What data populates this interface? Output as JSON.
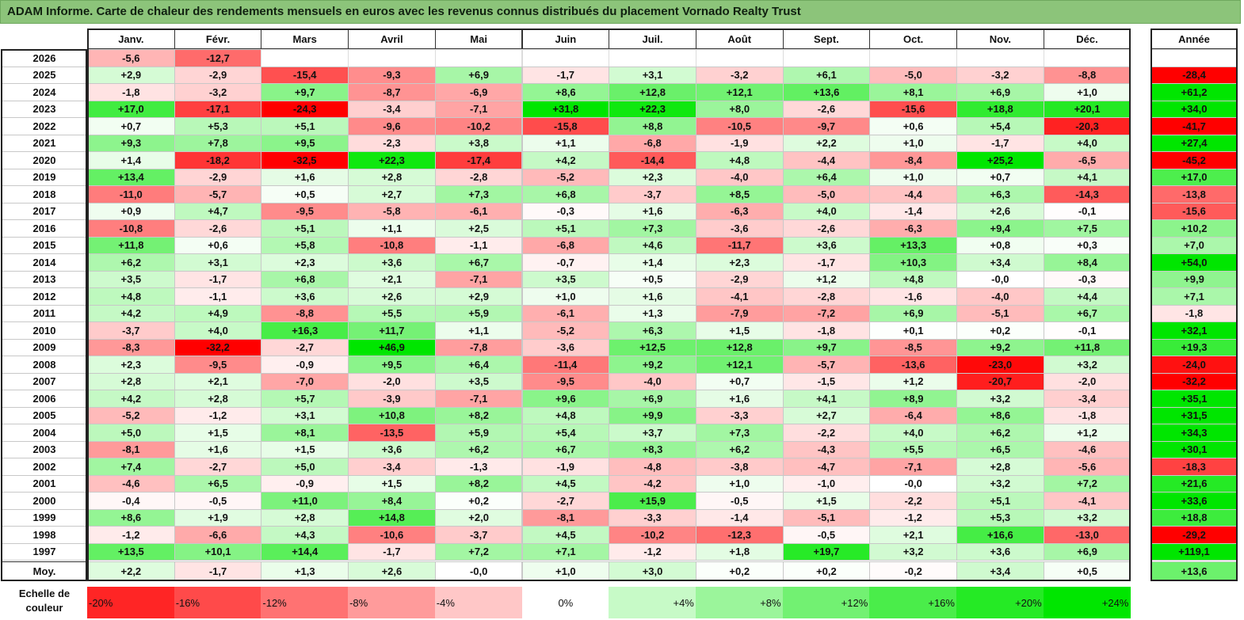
{
  "title": "ADAM Informe. Carte de chaleur des rendements mensuels en euros avec les revenus connus distribués du placement Vornado Realty Trust",
  "chart_data": {
    "type": "heatmap",
    "columns": [
      "Janv.",
      "Févr.",
      "Mars",
      "Avril",
      "Mai",
      "Juin",
      "Juil.",
      "Août",
      "Sept.",
      "Oct.",
      "Nov.",
      "Déc."
    ],
    "year_column": "Année",
    "rows": [
      {
        "label": "2026",
        "months": [
          "-5,6",
          "-12,7",
          "",
          "",
          "",
          "",
          "",
          "",
          "",
          "",
          "",
          ""
        ],
        "year": ""
      },
      {
        "label": "2025",
        "months": [
          "+2,9",
          "-2,9",
          "-15,4",
          "-9,3",
          "+6,9",
          "-1,7",
          "+3,1",
          "-3,2",
          "+6,1",
          "-5,0",
          "-3,2",
          "-8,8"
        ],
        "year": "-28,4"
      },
      {
        "label": "2024",
        "months": [
          "-1,8",
          "-3,2",
          "+9,7",
          "-8,7",
          "-6,9",
          "+8,6",
          "+12,8",
          "+12,1",
          "+13,6",
          "+8,1",
          "+6,9",
          "+1,0"
        ],
        "year": "+61,2"
      },
      {
        "label": "2023",
        "months": [
          "+17,0",
          "-17,1",
          "-24,3",
          "-3,4",
          "-7,1",
          "+31,8",
          "+22,3",
          "+8,0",
          "-2,6",
          "-15,6",
          "+18,8",
          "+20,1"
        ],
        "year": "+34,0"
      },
      {
        "label": "2022",
        "months": [
          "+0,7",
          "+5,3",
          "+5,1",
          "-9,6",
          "-10,2",
          "-15,8",
          "+8,8",
          "-10,5",
          "-9,7",
          "+0,6",
          "+5,4",
          "-20,3"
        ],
        "year": "-41,7"
      },
      {
        "label": "2021",
        "months": [
          "+9,3",
          "+7,8",
          "+9,5",
          "-2,3",
          "+3,8",
          "+1,1",
          "-6,8",
          "-1,9",
          "+2,2",
          "+1,0",
          "-1,7",
          "+4,0"
        ],
        "year": "+27,4"
      },
      {
        "label": "2020",
        "months": [
          "+1,4",
          "-18,2",
          "-32,5",
          "+22,3",
          "-17,4",
          "+4,2",
          "-14,4",
          "+4,8",
          "-4,4",
          "-8,4",
          "+25,2",
          "-6,5"
        ],
        "year": "-45,2"
      },
      {
        "label": "2019",
        "months": [
          "+13,4",
          "-2,9",
          "+1,6",
          "+2,8",
          "-2,8",
          "-5,2",
          "+2,3",
          "-4,0",
          "+6,4",
          "+1,0",
          "+0,7",
          "+4,1"
        ],
        "year": "+17,0"
      },
      {
        "label": "2018",
        "months": [
          "-11,0",
          "-5,7",
          "+0,5",
          "+2,7",
          "+7,3",
          "+6,8",
          "-3,7",
          "+8,5",
          "-5,0",
          "-4,4",
          "+6,3",
          "-14,3"
        ],
        "year": "-13,8"
      },
      {
        "label": "2017",
        "months": [
          "+0,9",
          "+4,7",
          "-9,5",
          "-5,8",
          "-6,1",
          "-0,3",
          "+1,6",
          "-6,3",
          "+4,0",
          "-1,4",
          "+2,6",
          "-0,1"
        ],
        "year": "-15,6"
      },
      {
        "label": "2016",
        "months": [
          "-10,8",
          "-2,6",
          "+5,1",
          "+1,1",
          "+2,5",
          "+5,1",
          "+7,3",
          "-3,6",
          "-2,6",
          "-6,3",
          "+9,4",
          "+7,5"
        ],
        "year": "+10,2"
      },
      {
        "label": "2015",
        "months": [
          "+11,8",
          "+0,6",
          "+5,8",
          "-10,8",
          "-1,1",
          "-6,8",
          "+4,6",
          "-11,7",
          "+3,6",
          "+13,3",
          "+0,8",
          "+0,3"
        ],
        "year": "+7,0"
      },
      {
        "label": "2014",
        "months": [
          "+6,2",
          "+3,1",
          "+2,3",
          "+3,6",
          "+6,7",
          "-0,7",
          "+1,4",
          "+2,3",
          "-1,7",
          "+10,3",
          "+3,4",
          "+8,4"
        ],
        "year": "+54,0"
      },
      {
        "label": "2013",
        "months": [
          "+3,5",
          "-1,7",
          "+6,8",
          "+2,1",
          "-7,1",
          "+3,5",
          "+0,5",
          "-2,9",
          "+1,2",
          "+4,8",
          "-0,0",
          "-0,3"
        ],
        "year": "+9,9"
      },
      {
        "label": "2012",
        "months": [
          "+4,8",
          "-1,1",
          "+3,6",
          "+2,6",
          "+2,9",
          "+1,0",
          "+1,6",
          "-4,1",
          "-2,8",
          "-1,6",
          "-4,0",
          "+4,4"
        ],
        "year": "+7,1"
      },
      {
        "label": "2011",
        "months": [
          "+4,2",
          "+4,9",
          "-8,8",
          "+5,5",
          "+5,9",
          "-6,1",
          "+1,3",
          "-7,9",
          "-7,2",
          "+6,9",
          "-5,1",
          "+6,7"
        ],
        "year": "-1,8"
      },
      {
        "label": "2010",
        "months": [
          "-3,7",
          "+4,0",
          "+16,3",
          "+11,7",
          "+1,1",
          "-5,2",
          "+6,3",
          "+1,5",
          "-1,8",
          "+0,1",
          "+0,2",
          "-0,1"
        ],
        "year": "+32,1"
      },
      {
        "label": "2009",
        "months": [
          "-8,3",
          "-32,2",
          "-2,7",
          "+46,9",
          "-7,8",
          "-3,6",
          "+12,5",
          "+12,8",
          "+9,7",
          "-8,5",
          "+9,2",
          "+11,8"
        ],
        "year": "+19,3"
      },
      {
        "label": "2008",
        "months": [
          "+2,3",
          "-9,5",
          "-0,9",
          "+9,5",
          "+6,4",
          "-11,4",
          "+9,2",
          "+12,1",
          "-5,7",
          "-13,6",
          "-23,0",
          "+3,2"
        ],
        "year": "-24,0"
      },
      {
        "label": "2007",
        "months": [
          "+2,8",
          "+2,1",
          "-7,0",
          "-2,0",
          "+3,5",
          "-9,5",
          "-4,0",
          "+0,7",
          "-1,5",
          "+1,2",
          "-20,7",
          "-2,0"
        ],
        "year": "-32,2"
      },
      {
        "label": "2006",
        "months": [
          "+4,2",
          "+2,8",
          "+5,7",
          "-3,9",
          "-7,1",
          "+9,6",
          "+6,9",
          "+1,6",
          "+4,1",
          "+8,9",
          "+3,2",
          "-3,4"
        ],
        "year": "+35,1"
      },
      {
        "label": "2005",
        "months": [
          "-5,2",
          "-1,2",
          "+3,1",
          "+10,8",
          "+8,2",
          "+4,8",
          "+9,9",
          "-3,3",
          "+2,7",
          "-6,4",
          "+8,6",
          "-1,8"
        ],
        "year": "+31,5"
      },
      {
        "label": "2004",
        "months": [
          "+5,0",
          "+1,5",
          "+8,1",
          "-13,5",
          "+5,9",
          "+5,4",
          "+3,7",
          "+7,3",
          "-2,2",
          "+4,0",
          "+6,2",
          "+1,2"
        ],
        "year": "+34,3"
      },
      {
        "label": "2003",
        "months": [
          "-8,1",
          "+1,6",
          "+1,5",
          "+3,6",
          "+6,2",
          "+6,7",
          "+8,3",
          "+6,2",
          "-4,3",
          "+5,5",
          "+6,5",
          "-4,6"
        ],
        "year": "+30,1"
      },
      {
        "label": "2002",
        "months": [
          "+7,4",
          "-2,7",
          "+5,0",
          "-3,4",
          "-1,3",
          "-1,9",
          "-4,8",
          "-3,8",
          "-4,7",
          "-7,1",
          "+2,8",
          "-5,6"
        ],
        "year": "-18,3"
      },
      {
        "label": "2001",
        "months": [
          "-4,6",
          "+6,5",
          "-0,9",
          "+1,5",
          "+8,2",
          "+4,5",
          "-4,2",
          "+1,0",
          "-1,0",
          "-0,0",
          "+3,2",
          "+7,2"
        ],
        "year": "+21,6"
      },
      {
        "label": "2000",
        "months": [
          "-0,4",
          "-0,5",
          "+11,0",
          "+8,4",
          "+0,2",
          "-2,7",
          "+15,9",
          "-0,5",
          "+1,5",
          "-2,2",
          "+5,1",
          "-4,1"
        ],
        "year": "+33,6"
      },
      {
        "label": "1999",
        "months": [
          "+8,6",
          "+1,9",
          "+2,8",
          "+14,8",
          "+2,0",
          "-8,1",
          "-3,3",
          "-1,4",
          "-5,1",
          "-1,2",
          "+5,3",
          "+3,2"
        ],
        "year": "+18,8"
      },
      {
        "label": "1998",
        "months": [
          "-1,2",
          "-6,6",
          "+4,3",
          "-10,6",
          "-3,7",
          "+4,5",
          "-10,2",
          "-12,3",
          "-0,5",
          "+2,1",
          "+16,6",
          "-13,0"
        ],
        "year": "-29,2"
      },
      {
        "label": "1997",
        "months": [
          "+13,5",
          "+10,1",
          "+14,4",
          "-1,7",
          "+7,2",
          "+7,1",
          "-1,2",
          "+1,8",
          "+19,7",
          "+3,2",
          "+3,6",
          "+6,9"
        ],
        "year": "+119,1"
      }
    ],
    "average": {
      "label": "Moy.",
      "months": [
        "+2,2",
        "-1,7",
        "+1,3",
        "+2,6",
        "-0,0",
        "+1,0",
        "+3,0",
        "+0,2",
        "+0,2",
        "-0,2",
        "+3,4",
        "+0,5"
      ],
      "year": "+13,6"
    },
    "scale_label": "Echelle de couleur",
    "scale": [
      "-20%",
      "-16%",
      "-12%",
      "-8%",
      "-4%",
      "0%",
      "+4%",
      "+8%",
      "+12%",
      "+16%",
      "+20%",
      "+24%"
    ],
    "colors": {
      "negative": "#ff0000",
      "positive": "#00e000",
      "neutral": "#ffffff",
      "title_bg": "#8cc47a"
    }
  }
}
